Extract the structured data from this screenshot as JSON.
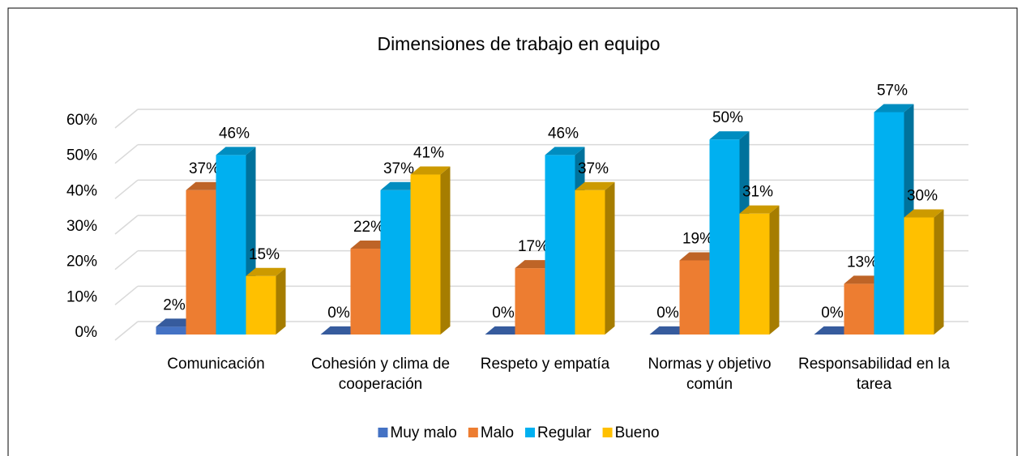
{
  "chart_data": {
    "type": "bar3d",
    "title": "Dimensiones de trabajo en equipo",
    "categories": [
      "Comunicación",
      "Cohesión y clima de cooperación",
      "Respeto y empatía",
      "Normas y objetivo común",
      "Responsabilidad en la tarea"
    ],
    "series": [
      {
        "name": "Muy malo",
        "color": "#4472c4",
        "values": [
          2,
          0,
          0,
          0,
          0
        ],
        "value_labels": [
          "2%",
          "0%",
          "0%",
          "0%",
          "0%"
        ]
      },
      {
        "name": "Malo",
        "color": "#ed7d31",
        "values": [
          37,
          22,
          17,
          19,
          13
        ],
        "value_labels": [
          "37%",
          "22%",
          "17%",
          "19%",
          "13%"
        ]
      },
      {
        "name": "Regular",
        "color": "#00b0f0",
        "values": [
          46,
          37,
          46,
          50,
          57
        ],
        "value_labels": [
          "46%",
          "37%",
          "46%",
          "50%",
          "57%"
        ]
      },
      {
        "name": "Bueno",
        "color": "#ffc000",
        "values": [
          15,
          41,
          37,
          31,
          30
        ],
        "value_labels": [
          "15%",
          "41%",
          "37%",
          "31%",
          "30%"
        ]
      }
    ],
    "ylim": [
      0,
      60
    ],
    "yticks": [
      {
        "value": 0,
        "label": "0%"
      },
      {
        "value": 10,
        "label": "10%"
      },
      {
        "value": 20,
        "label": "20%"
      },
      {
        "value": 30,
        "label": "30%"
      },
      {
        "value": 40,
        "label": "40%"
      },
      {
        "value": 50,
        "label": "50%"
      },
      {
        "value": 60,
        "label": "60%"
      }
    ],
    "grid": true,
    "legend": "bottom"
  }
}
